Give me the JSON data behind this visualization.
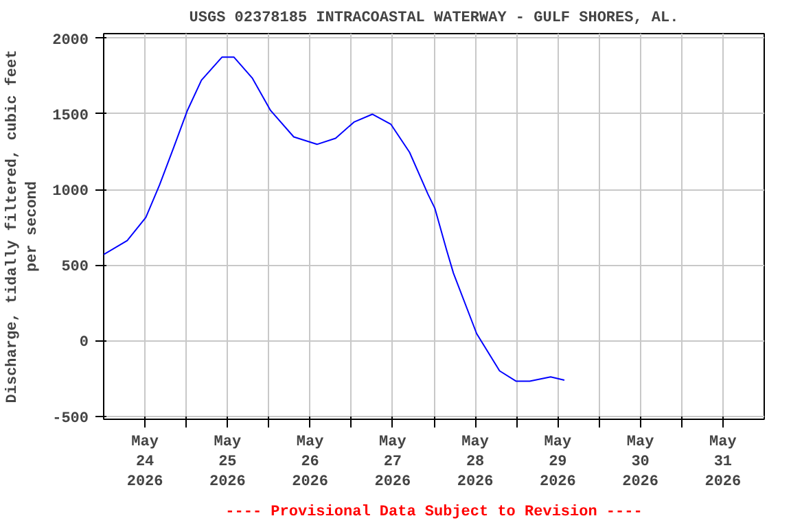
{
  "chart_data": {
    "type": "line",
    "title": "USGS 02378185 INTRACOASTAL WATERWAY - GULF SHORES, AL.",
    "ylabel": "Discharge, tidally filtered, cubic feet\nper second",
    "x": [
      "2026-05-24T00:00",
      "2026-05-24T06:50",
      "2026-05-24T12:15",
      "2026-05-24T16:15",
      "2026-05-24T20:20",
      "2026-05-25T00:20",
      "2026-05-25T04:25",
      "2026-05-25T10:25",
      "2026-05-25T13:50",
      "2026-05-25T19:10",
      "2026-05-26T00:30",
      "2026-05-26T07:15",
      "2026-05-26T14:00",
      "2026-05-26T19:25",
      "2026-05-27T00:45",
      "2026-05-27T06:05",
      "2026-05-27T11:30",
      "2026-05-27T16:55",
      "2026-05-27T22:15",
      "2026-05-28T00:15",
      "2026-05-28T03:40",
      "2026-05-28T05:40",
      "2026-05-28T12:25",
      "2026-05-28T19:05",
      "2026-05-28T23:50",
      "2026-05-29T03:50",
      "2026-05-29T09:55",
      "2026-05-29T13:55"
    ],
    "series": [
      {
        "color": "#0000ff",
        "values": [
          569,
          661,
          815,
          1030,
          1276,
          1522,
          1722,
          1875,
          1875,
          1737,
          1522,
          1347,
          1298,
          1338,
          1445,
          1497,
          1430,
          1245,
          969,
          876,
          600,
          446,
          46,
          -200,
          -268,
          -268,
          -240,
          -261
        ]
      }
    ],
    "xlim": [
      "2026-05-24T00:00",
      "2026-06-01T00:00"
    ],
    "xticks": [
      {
        "value": "2026-05-24T12:00",
        "label": "May\n24\n2026"
      },
      {
        "value": "2026-05-25T12:00",
        "label": "May\n25\n2026"
      },
      {
        "value": "2026-05-26T12:00",
        "label": "May\n26\n2026"
      },
      {
        "value": "2026-05-27T12:00",
        "label": "May\n27\n2026"
      },
      {
        "value": "2026-05-28T12:00",
        "label": "May\n28\n2026"
      },
      {
        "value": "2026-05-29T12:00",
        "label": "May\n29\n2026"
      },
      {
        "value": "2026-05-30T12:00",
        "label": "May\n30\n2026"
      },
      {
        "value": "2026-05-31T12:00",
        "label": "May\n31\n2026"
      },
      {
        "value": "2026-05-25T00:00",
        "label": null
      },
      {
        "value": "2026-05-26T00:00",
        "label": null
      },
      {
        "value": "2026-05-27T00:00",
        "label": null
      },
      {
        "value": "2026-05-28T00:00",
        "label": null
      },
      {
        "value": "2026-05-29T00:00",
        "label": null
      },
      {
        "value": "2026-05-30T00:00",
        "label": null
      },
      {
        "value": "2026-05-31T00:00",
        "label": null
      }
    ],
    "ylim": [
      -520,
      2030
    ],
    "yticks": [
      -500,
      0,
      500,
      1000,
      1500,
      2000
    ],
    "grid": true,
    "line_style": "solid",
    "marker": "none",
    "annotations": [
      "---- Provisional Data Subject to Revision ----"
    ]
  }
}
